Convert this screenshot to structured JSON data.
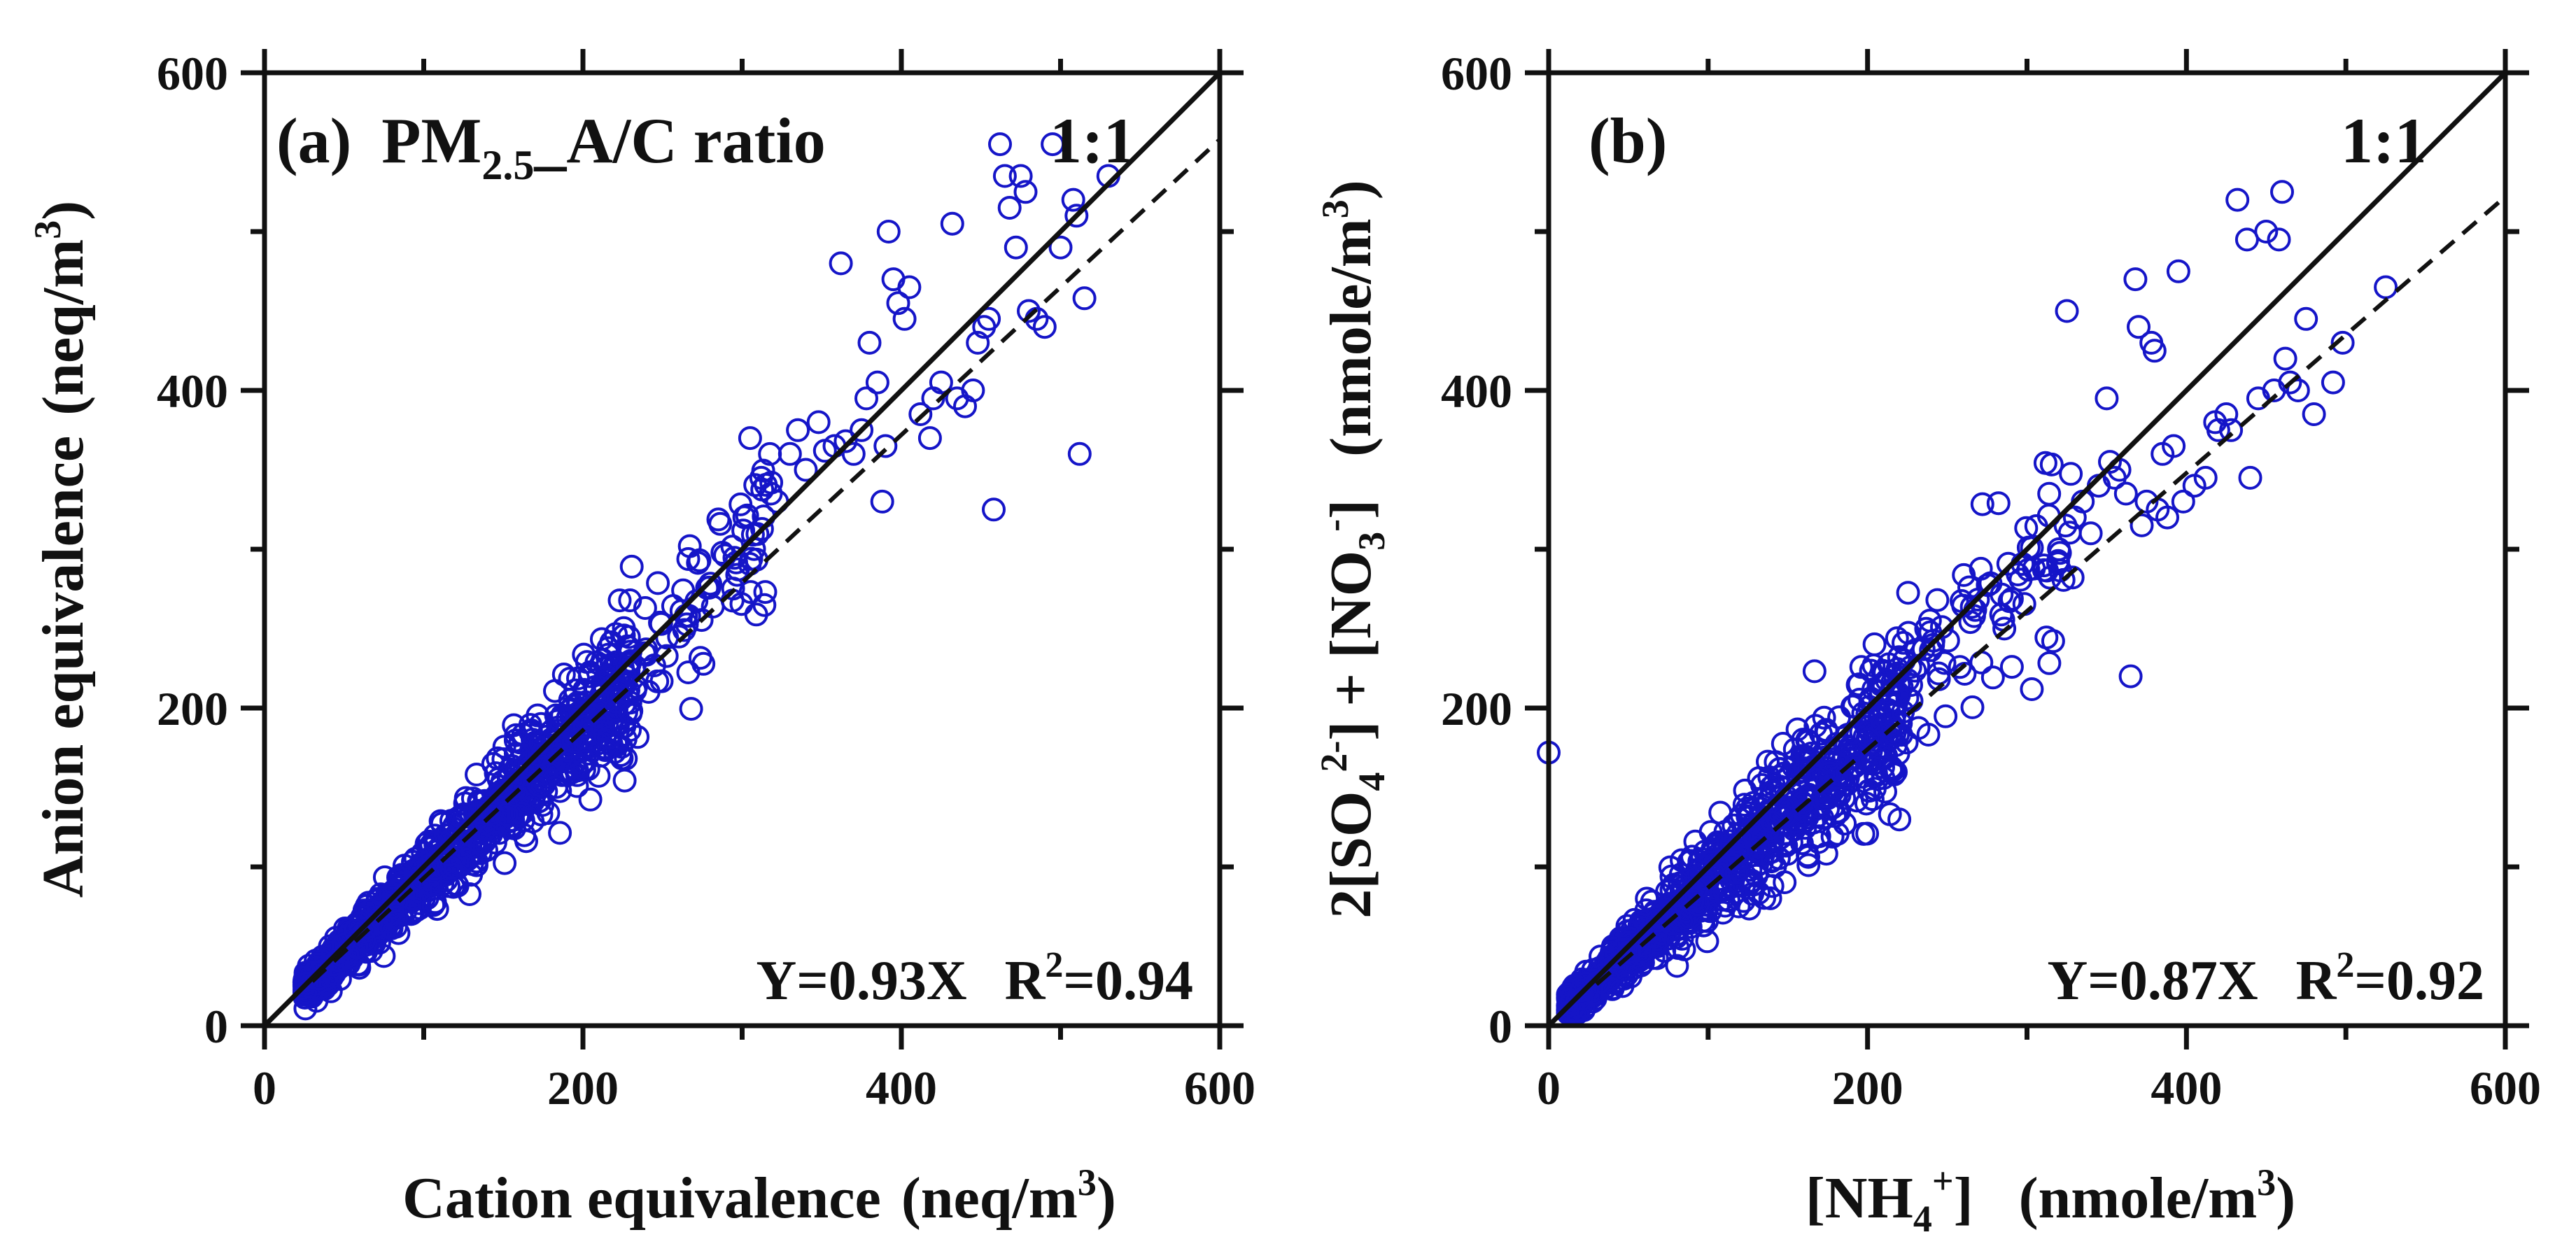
{
  "chart_data": [
    {
      "type": "scatter",
      "panel_label": "(a)",
      "title_main": "PM",
      "title_sub": "2.5",
      "title_rest": "_A/C ratio",
      "ratio_label": "1:1",
      "xlabel": "Cation equivalence (neq/m³)",
      "xlabel_main": "Cation equivalence",
      "xlabel_unit": "(neq/m",
      "xlabel_unit_sup": "3",
      "xlabel_unit_close": ")",
      "ylabel": "Anion equivalence (neq/m³)",
      "ylabel_main": "Anion equivalence",
      "ylabel_unit": "(neq/m",
      "ylabel_unit_sup": "3",
      "ylabel_unit_close": ")",
      "xlim": [
        0,
        600
      ],
      "ylim": [
        0,
        600
      ],
      "xticks": [
        0,
        200,
        400,
        600
      ],
      "yticks": [
        0,
        200,
        400,
        600
      ],
      "xtick_labels": [
        "0",
        "200",
        "400",
        "600"
      ],
      "ytick_labels": [
        "0",
        "200",
        "400",
        "600"
      ],
      "fit_slope": 0.93,
      "fit_intercept": 0,
      "equation": "Y=0.93X",
      "r2_label": "R",
      "r2_sup": "2",
      "r2_value": "=0.94",
      "marker_color": "#1515c8",
      "series": [
        {
          "name": "dense_cluster",
          "generated": {
            "n": 1000,
            "seed": 11,
            "x_min": 25,
            "x_max": 230,
            "skew": 1.45,
            "slope": 0.93,
            "noise": 0.11,
            "noise_abs": 3
          }
        },
        {
          "name": "mid_range",
          "generated": {
            "n": 100,
            "seed": 23,
            "x_min": 200,
            "x_max": 320,
            "skew": 1.0,
            "slope": 0.97,
            "noise": 0.1,
            "noise_abs": 4
          }
        },
        {
          "name": "high_points",
          "points": [
            [
              305,
              370
            ],
            [
              312,
              345
            ],
            [
              318,
              335
            ],
            [
              322,
              330
            ],
            [
              330,
              360
            ],
            [
              335,
              375
            ],
            [
              340,
              350
            ],
            [
              348,
              380
            ],
            [
              352,
              362
            ],
            [
              358,
              365
            ],
            [
              362,
              480
            ],
            [
              365,
              368
            ],
            [
              370,
              360
            ],
            [
              375,
              375
            ],
            [
              378,
              395
            ],
            [
              380,
              430
            ],
            [
              385,
              405
            ],
            [
              388,
              330
            ],
            [
              390,
              365
            ],
            [
              392,
              500
            ],
            [
              395,
              470
            ],
            [
              398,
              455
            ],
            [
              402,
              445
            ],
            [
              405,
              465
            ],
            [
              412,
              385
            ],
            [
              418,
              370
            ],
            [
              420,
              395
            ],
            [
              425,
              405
            ],
            [
              432,
              505
            ],
            [
              435,
              395
            ],
            [
              440,
              390
            ],
            [
              445,
              400
            ],
            [
              448,
              430
            ],
            [
              452,
              440
            ],
            [
              455,
              445
            ],
            [
              458,
              325
            ],
            [
              462,
              555
            ],
            [
              465,
              535
            ],
            [
              468,
              515
            ],
            [
              472,
              490
            ],
            [
              475,
              535
            ],
            [
              478,
              525
            ],
            [
              480,
              450
            ],
            [
              485,
              445
            ],
            [
              490,
              440
            ],
            [
              495,
              555
            ],
            [
              500,
              490
            ],
            [
              508,
              520
            ],
            [
              510,
              510
            ],
            [
              512,
              360
            ],
            [
              515,
              458
            ],
            [
              530,
              535
            ]
          ]
        }
      ]
    },
    {
      "type": "scatter",
      "panel_label": "(b)",
      "ratio_label": "1:1",
      "xlabel": "[NH₄⁺] (nmole/m³)",
      "xlabel_open": "[NH",
      "xlabel_sub": "4",
      "xlabel_sup": "+",
      "xlabel_close": "]",
      "xlabel_unit": "(nmole/m",
      "xlabel_unit_sup": "3",
      "xlabel_unit_close": ")",
      "ylabel": "2[SO₄²⁻] + [NO₃⁻] (nmole/m³)",
      "ylabel_p1": "2[SO",
      "ylabel_p1_sub": "4",
      "ylabel_p1_sup": "2-",
      "ylabel_p1_close": "] + [NO",
      "ylabel_p2_sub": "3",
      "ylabel_p2_sup": "-",
      "ylabel_p2_close": "]",
      "ylabel_unit": "(nmole/m",
      "ylabel_unit_sup": "3",
      "ylabel_unit_close": ")",
      "xlim": [
        0,
        600
      ],
      "ylim": [
        0,
        600
      ],
      "xticks": [
        0,
        200,
        400,
        600
      ],
      "yticks": [
        0,
        200,
        400,
        600
      ],
      "xtick_labels": [
        "0",
        "200",
        "400",
        "600"
      ],
      "ytick_labels": [
        "0",
        "200",
        "400",
        "600"
      ],
      "fit_slope": 0.87,
      "fit_intercept": 0,
      "equation": "Y=0.87X",
      "r2_label": "R",
      "r2_sup": "2",
      "r2_value": "=0.92",
      "marker_color": "#1515c8",
      "series": [
        {
          "name": "dense_cluster",
          "generated": {
            "n": 950,
            "seed": 37,
            "x_min": 12,
            "x_max": 220,
            "skew": 1.5,
            "slope": 0.9,
            "noise": 0.14,
            "noise_abs": 4
          }
        },
        {
          "name": "mid_range",
          "generated": {
            "n": 110,
            "seed": 53,
            "x_min": 200,
            "x_max": 330,
            "skew": 1.0,
            "slope": 0.95,
            "noise": 0.1,
            "noise_abs": 4
          }
        },
        {
          "name": "high_points",
          "points": [
            [
              0,
              172
            ],
            [
              320,
              300
            ],
            [
              325,
              450
            ],
            [
              330,
              320
            ],
            [
              335,
              330
            ],
            [
              340,
              310
            ],
            [
              345,
              340
            ],
            [
              350,
              395
            ],
            [
              352,
              355
            ],
            [
              355,
              345
            ],
            [
              358,
              350
            ],
            [
              362,
              335
            ],
            [
              365,
              220
            ],
            [
              368,
              470
            ],
            [
              370,
              440
            ],
            [
              372,
              315
            ],
            [
              375,
              330
            ],
            [
              378,
              430
            ],
            [
              380,
              425
            ],
            [
              382,
              325
            ],
            [
              385,
              360
            ],
            [
              388,
              320
            ],
            [
              392,
              365
            ],
            [
              395,
              475
            ],
            [
              398,
              330
            ],
            [
              405,
              340
            ],
            [
              412,
              345
            ],
            [
              418,
              380
            ],
            [
              420,
              375
            ],
            [
              425,
              385
            ],
            [
              428,
              375
            ],
            [
              432,
              520
            ],
            [
              438,
              495
            ],
            [
              440,
              345
            ],
            [
              445,
              395
            ],
            [
              450,
              500
            ],
            [
              455,
              400
            ],
            [
              458,
              495
            ],
            [
              460,
              525
            ],
            [
              462,
              420
            ],
            [
              465,
              405
            ],
            [
              470,
              400
            ],
            [
              475,
              445
            ],
            [
              480,
              385
            ],
            [
              492,
              405
            ],
            [
              498,
              430
            ],
            [
              525,
              465
            ]
          ]
        }
      ]
    }
  ]
}
